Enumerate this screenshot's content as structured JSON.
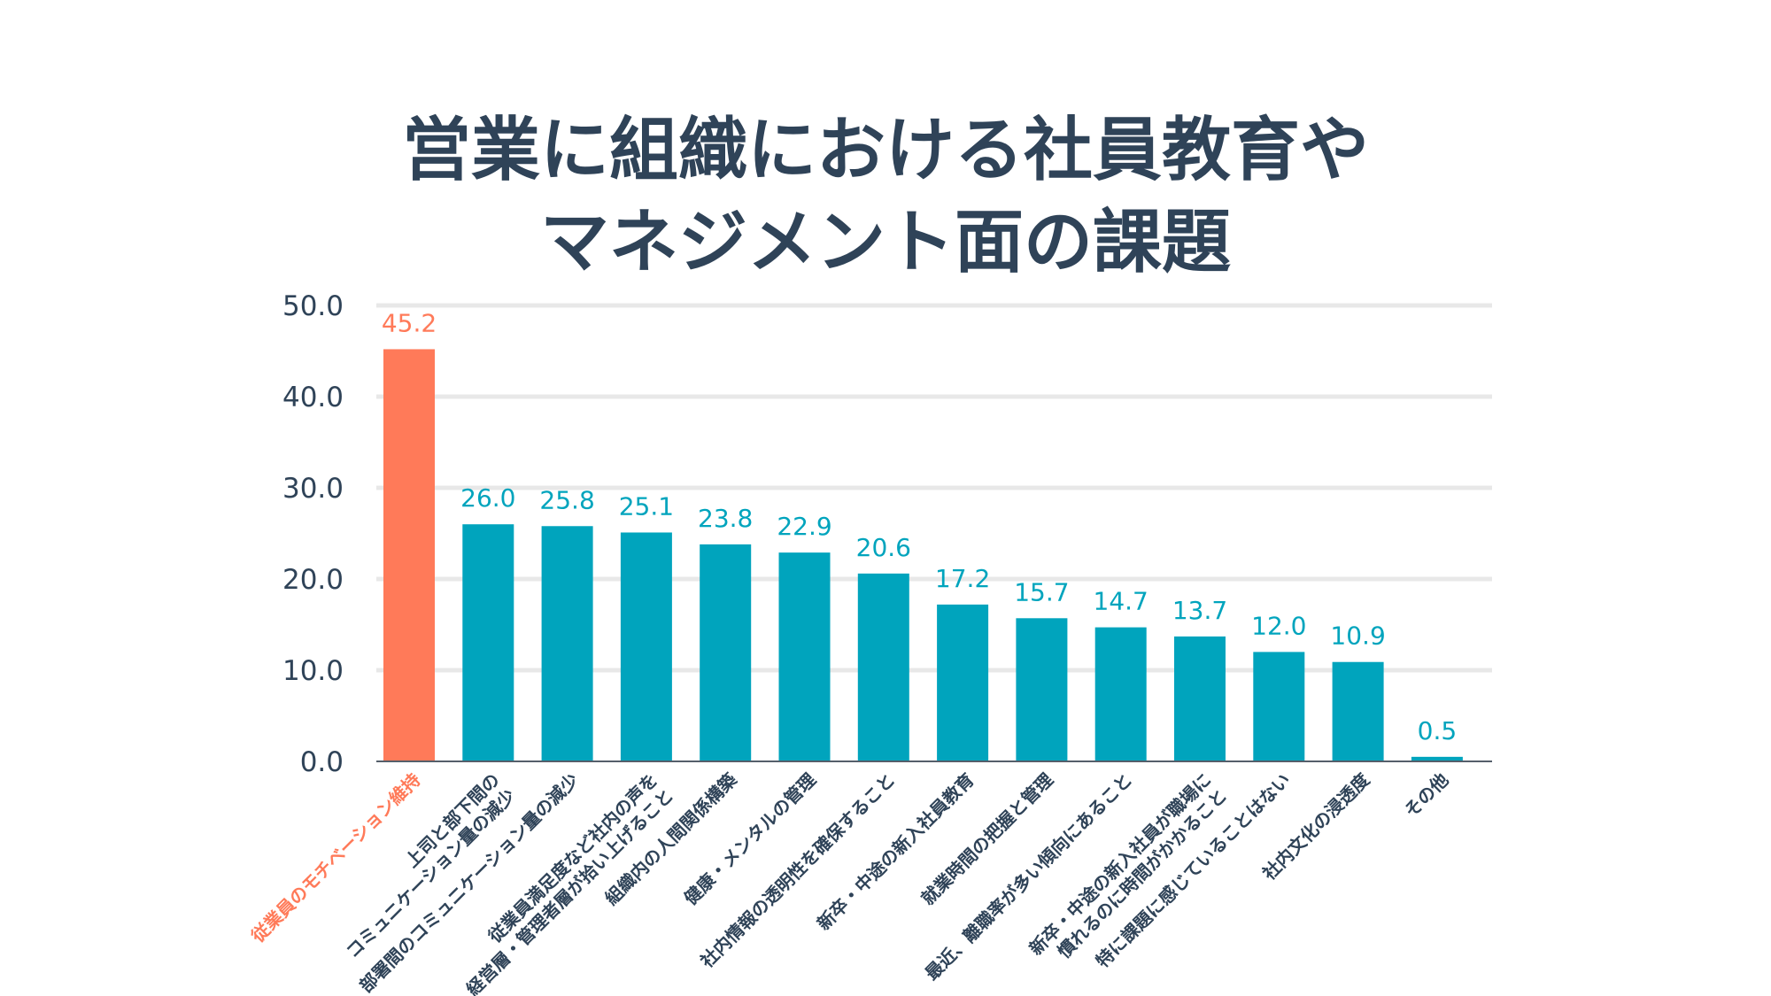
{
  "chart_data": {
    "type": "bar",
    "title_lines": [
      "営業に組織における社員教育や",
      "マネジメント面の課題"
    ],
    "categories": [
      [
        "従業員のモチベーション維持"
      ],
      [
        "上司と部下間の",
        "コミュニケーション量の減少"
      ],
      [
        "部署間のコミュニケーション量の減少"
      ],
      [
        "従業員満足度など社内の声を",
        "経営層・管理者層が拾い上げること"
      ],
      [
        "組織内の人間関係構築"
      ],
      [
        "健康・メンタルの管理"
      ],
      [
        "社内情報の透明性を確保すること"
      ],
      [
        "新卒・中途の新入社員教育"
      ],
      [
        "就業時間の把握と管理"
      ],
      [
        "最近、離職率が多い傾向にあること"
      ],
      [
        "新卒・中途の新入社員が職場に",
        "慣れるのに時間がかかること"
      ],
      [
        "特に課題に感じていることはない"
      ],
      [
        "社内文化の浸透度"
      ],
      [
        "その他"
      ]
    ],
    "values": [
      45.2,
      26.0,
      25.8,
      25.1,
      23.8,
      22.9,
      20.6,
      17.2,
      15.7,
      14.7,
      13.7,
      12.0,
      10.9,
      0.5
    ],
    "value_labels": [
      "45.2",
      "26.0",
      "25.8",
      "25.1",
      "23.8",
      "22.9",
      "20.6",
      "17.2",
      "15.7",
      "14.7",
      "13.7",
      "12.0",
      "10.9",
      "0.5"
    ],
    "yticks": [
      "0.0",
      "10.0",
      "20.0",
      "30.0",
      "40.0",
      "50.0"
    ],
    "ylim": [
      0,
      50
    ],
    "grid": true,
    "highlight_index": 0,
    "colors": {
      "highlight": "#ff7a59",
      "bar": "#00a4bd",
      "title": "#2f4358",
      "axis_text": "#2f4358",
      "grid": "#e8e8e8"
    }
  }
}
